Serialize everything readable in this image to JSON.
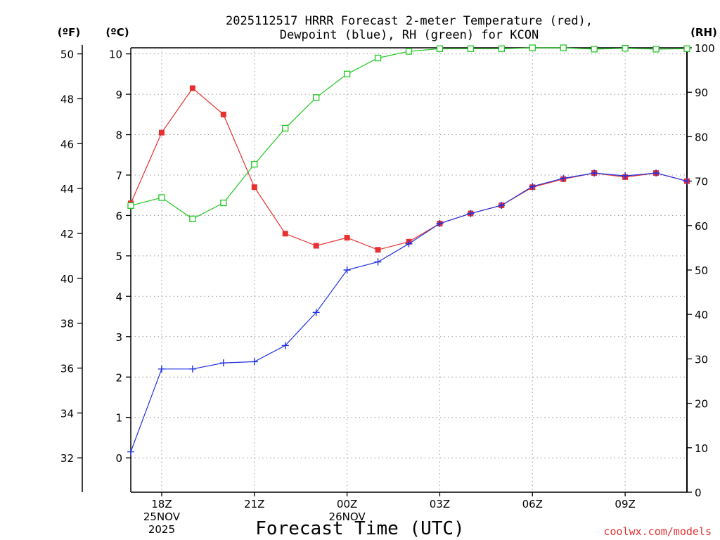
{
  "chart_data": {
    "type": "line",
    "title_lines": [
      "2025112517 HRRR Forecast 2-meter Temperature (red),",
      "Dewpoint (blue), RH (green) for KCON"
    ],
    "xlabel": "Forecast Time (UTC)",
    "credit": "coolwx.com/models",
    "axis_units": {
      "left_outer": "(ºF)",
      "left_inner": "(ºC)",
      "right": "(RH)"
    },
    "x_hours": [
      17,
      18,
      19,
      20,
      21,
      22,
      23,
      24,
      25,
      26,
      27,
      28,
      29,
      30,
      31,
      32,
      33,
      34,
      35
    ],
    "x_range": [
      17,
      35
    ],
    "x_ticks": [
      {
        "hour": 18,
        "lines": [
          "18Z",
          "25NOV",
          "2025"
        ]
      },
      {
        "hour": 21,
        "lines": [
          "21Z"
        ]
      },
      {
        "hour": 24,
        "lines": [
          "00Z",
          "26NOV"
        ]
      },
      {
        "hour": 27,
        "lines": [
          "03Z"
        ]
      },
      {
        "hour": 30,
        "lines": [
          "06Z"
        ]
      },
      {
        "hour": 33,
        "lines": [
          "09Z"
        ]
      }
    ],
    "y_celsius": {
      "range": [
        -0.85,
        10.15
      ],
      "ticks": [
        0,
        1,
        2,
        3,
        4,
        5,
        6,
        7,
        8,
        9,
        10
      ]
    },
    "y_fahrenheit": {
      "ticks": [
        32,
        34,
        36,
        38,
        40,
        42,
        44,
        46,
        48,
        50
      ]
    },
    "y_rh": {
      "range": [
        0,
        100
      ],
      "ticks": [
        0,
        10,
        20,
        30,
        40,
        50,
        60,
        70,
        80,
        90,
        100
      ]
    },
    "grid": true,
    "series": [
      {
        "name": "Temperature",
        "axis": "celsius",
        "color": "#e83030",
        "marker": "filled-square",
        "values": [
          6.3,
          8.05,
          9.15,
          8.5,
          6.7,
          5.55,
          5.25,
          5.45,
          5.15,
          5.35,
          5.8,
          6.05,
          6.25,
          6.7,
          6.9,
          7.05,
          6.95,
          7.05,
          6.85
        ]
      },
      {
        "name": "Dewpoint",
        "axis": "celsius",
        "color": "#2030e0",
        "marker": "plus",
        "values": [
          0.15,
          2.2,
          2.2,
          2.35,
          2.38,
          2.78,
          3.6,
          4.65,
          4.85,
          5.3,
          5.8,
          6.05,
          6.25,
          6.72,
          6.92,
          7.05,
          6.98,
          7.05,
          6.85
        ]
      },
      {
        "name": "RH",
        "axis": "rh",
        "color": "#20c820",
        "marker": "open-square",
        "values": [
          64.5,
          66.3,
          61.5,
          65.1,
          73.8,
          81.9,
          88.8,
          94.1,
          97.7,
          99.2,
          99.8,
          99.8,
          99.8,
          100,
          100,
          99.7,
          99.9,
          99.7,
          99.8
        ]
      }
    ]
  }
}
